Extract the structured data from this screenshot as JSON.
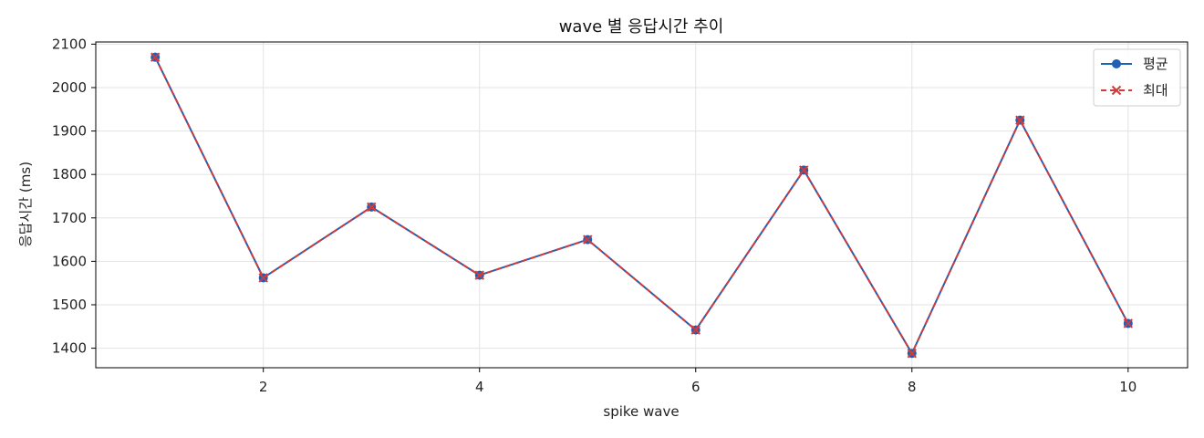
{
  "chart_data": {
    "type": "line",
    "title": "wave 별 응답시간 추이",
    "xlabel": "spike wave",
    "ylabel": "응답시간 (ms)",
    "x": [
      1,
      2,
      3,
      4,
      5,
      6,
      7,
      8,
      9,
      10
    ],
    "xlim": [
      0.45,
      10.55
    ],
    "ylim": [
      1355,
      2105
    ],
    "xticks": [
      2,
      4,
      6,
      8,
      10
    ],
    "yticks": [
      1400,
      1500,
      1600,
      1700,
      1800,
      1900,
      2000,
      2100
    ],
    "grid": true,
    "legend_position": "top-right",
    "series": [
      {
        "name": "평균",
        "values": [
          2070,
          1562,
          1725,
          1568,
          1650,
          1442,
          1810,
          1388,
          1925,
          1457
        ],
        "color": "#1f5fb4",
        "marker": "circle",
        "line_style": "solid"
      },
      {
        "name": "최대",
        "values": [
          2070,
          1562,
          1725,
          1568,
          1650,
          1442,
          1810,
          1388,
          1925,
          1457
        ],
        "color": "#d13b3b",
        "marker": "x",
        "line_style": "dashed"
      }
    ]
  }
}
